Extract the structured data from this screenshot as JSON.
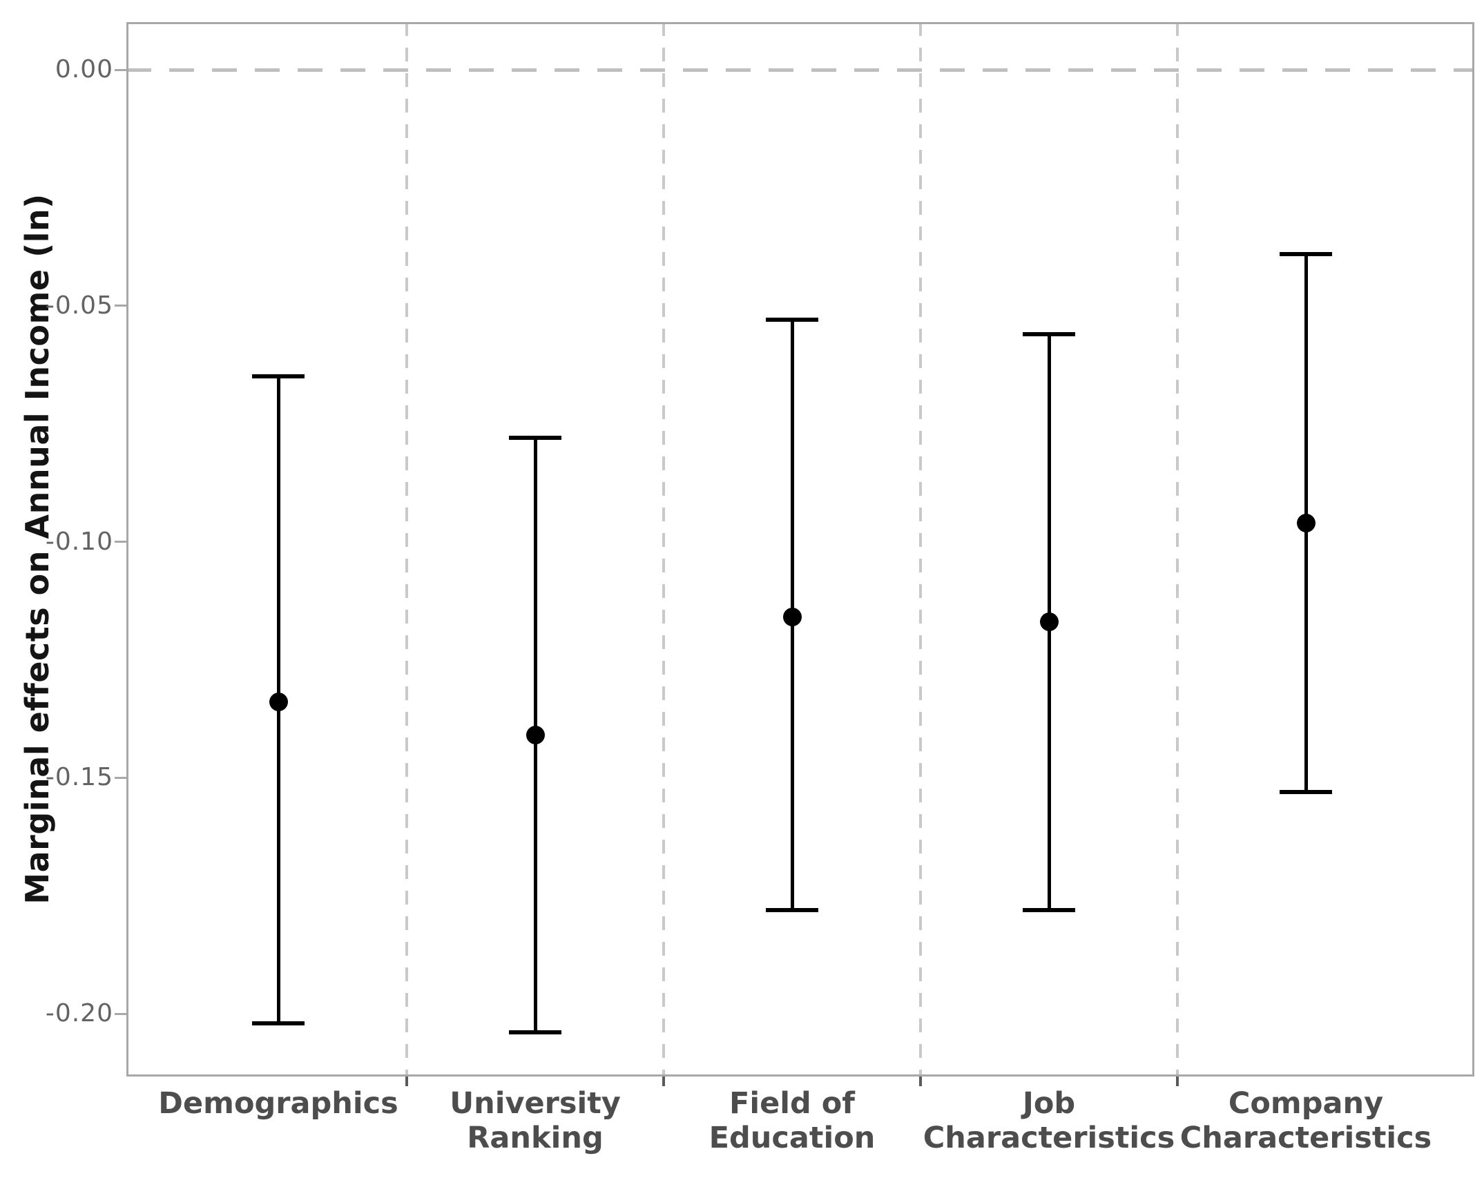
{
  "chart_data": {
    "type": "scatter",
    "variant": "point estimates with error bars (coefficient plot)",
    "title": "",
    "xlabel": "",
    "ylabel": "Marginal effects on Annual Income (ln)",
    "categories": [
      "Demographics",
      "University Ranking",
      "Field of Education",
      "Job Characteristics",
      "Company Characteristics"
    ],
    "category_label_lines": [
      [
        "Demographics"
      ],
      [
        "University",
        "Ranking"
      ],
      [
        "Field of",
        "Education"
      ],
      [
        "Job",
        "Characteristics"
      ],
      [
        "Company",
        "Characteristics"
      ]
    ],
    "series": [
      {
        "name": "point estimate",
        "values": [
          -0.134,
          -0.141,
          -0.116,
          -0.117,
          -0.096
        ]
      },
      {
        "name": "ci lower",
        "values": [
          -0.202,
          -0.204,
          -0.178,
          -0.178,
          -0.153
        ]
      },
      {
        "name": "ci upper",
        "values": [
          -0.065,
          -0.078,
          -0.053,
          -0.056,
          -0.039
        ]
      }
    ],
    "y_ticks": {
      "values": [
        0.0,
        -0.05,
        -0.1,
        -0.15,
        -0.2
      ],
      "labels": [
        "0.00",
        "-0.05",
        "-0.10",
        "-0.15",
        "-0.20"
      ]
    },
    "ylim": [
      -0.2133,
      0.0101
    ],
    "reference_line_y": 0,
    "grid": {
      "vertical_dashed_dividers": true,
      "horizontal_gridlines": false
    },
    "legend": "none",
    "colors": {
      "point": "#000000",
      "error_bar": "#000000",
      "reference_line": "#bfbfbf",
      "divider_gridline": "#c9c9c9",
      "plot_border": "#a8a8a8",
      "y_tick_label": "#636363",
      "x_label": "#4d4d4d",
      "y_title": "#141414"
    }
  }
}
